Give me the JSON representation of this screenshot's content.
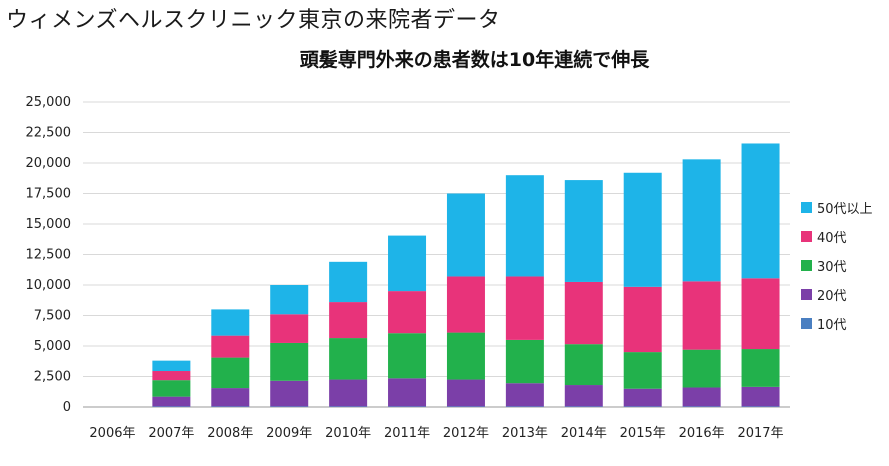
{
  "heading": "ウィメンズヘルスクリニック東京の来院者データ",
  "chart_data": {
    "type": "bar",
    "stacked": true,
    "title": "頭髪専門外来の患者数は10年連続で伸長",
    "xlabel": "",
    "ylabel": "",
    "ylim": [
      0,
      25000
    ],
    "yticks": [
      "0",
      "2,500",
      "5,000",
      "7,500",
      "10,000",
      "12,500",
      "15,000",
      "17,500",
      "20,000",
      "22,500",
      "25,000"
    ],
    "ytick_values": [
      0,
      2500,
      5000,
      7500,
      10000,
      12500,
      15000,
      17500,
      20000,
      22500,
      25000
    ],
    "categories": [
      "2006年",
      "2007年",
      "2008年",
      "2009年",
      "2010年",
      "2011年",
      "2012年",
      "2013年",
      "2014年",
      "2015年",
      "2016年",
      "2017年"
    ],
    "legend_position": "right",
    "grid": true,
    "series": [
      {
        "name": "10代",
        "color": "#4a7fc1",
        "values": [
          0,
          50,
          50,
          50,
          50,
          50,
          50,
          50,
          50,
          50,
          50,
          50
        ]
      },
      {
        "name": "20代",
        "color": "#7b3fa8",
        "values": [
          0,
          800,
          1500,
          2100,
          2200,
          2300,
          2200,
          1900,
          1750,
          1450,
          1550,
          1600
        ]
      },
      {
        "name": "30代",
        "color": "#22b14c",
        "values": [
          0,
          1350,
          2500,
          3100,
          3400,
          3700,
          3850,
          3550,
          3350,
          3000,
          3100,
          3100
        ]
      },
      {
        "name": "40代",
        "color": "#e8337a",
        "values": [
          0,
          750,
          1800,
          2350,
          2950,
          3450,
          4600,
          5200,
          5100,
          5350,
          5600,
          5800
        ]
      },
      {
        "name": "50代以上",
        "color": "#1eb4e8",
        "values": [
          0,
          850,
          2150,
          2400,
          3300,
          4550,
          6800,
          8300,
          8350,
          9350,
          10000,
          11050
        ]
      }
    ]
  }
}
